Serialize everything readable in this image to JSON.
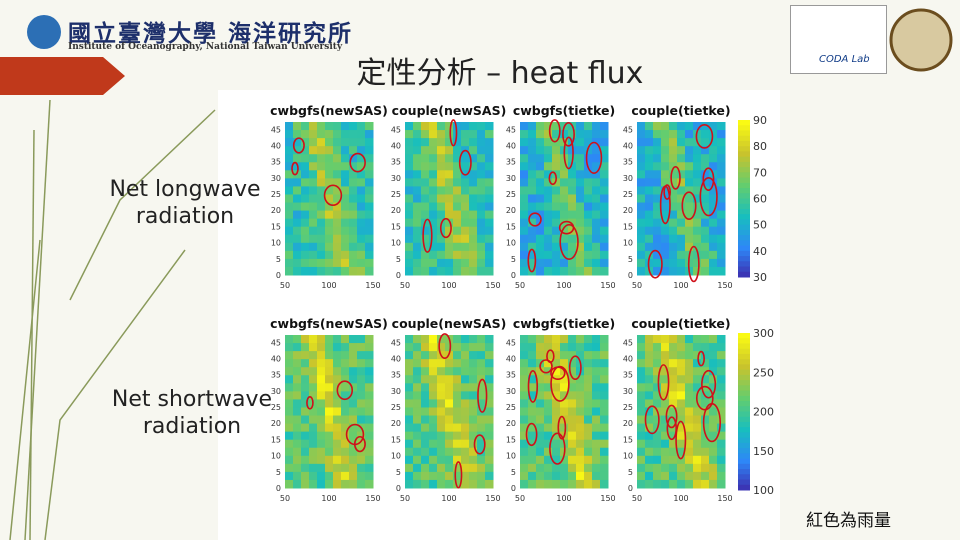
{
  "header": {
    "logo_chinese": "國立臺灣大學 海洋研究所",
    "logo_english": "Institute of Oceanography, National Taiwan University",
    "lab_logo": "CODA Lab"
  },
  "title": "定性分析 – heat flux",
  "figures": [
    {
      "label": "Net longwave radiation",
      "panels": [
        "cwbgfs(newSAS)",
        "couple(newSAS)",
        "cwbgfs(tietke)",
        "couple(tietke)"
      ],
      "yticks": [
        0,
        5,
        10,
        15,
        20,
        25,
        30,
        35,
        40,
        45
      ],
      "xticks": [
        50,
        100,
        150
      ],
      "colorbar_ticks": [
        30,
        40,
        50,
        60,
        70,
        80,
        90
      ]
    },
    {
      "label": "Net shortwave radiation",
      "panels": [
        "cwbgfs(newSAS)",
        "couple(newSAS)",
        "cwbgfs(tietke)",
        "couple(tietke)"
      ],
      "yticks": [
        0,
        5,
        10,
        15,
        20,
        25,
        30,
        35,
        40,
        45
      ],
      "xticks": [
        50,
        100,
        150
      ],
      "colorbar_ticks": [
        100,
        150,
        200,
        250,
        300
      ]
    }
  ],
  "note": "紅色為雨量"
}
